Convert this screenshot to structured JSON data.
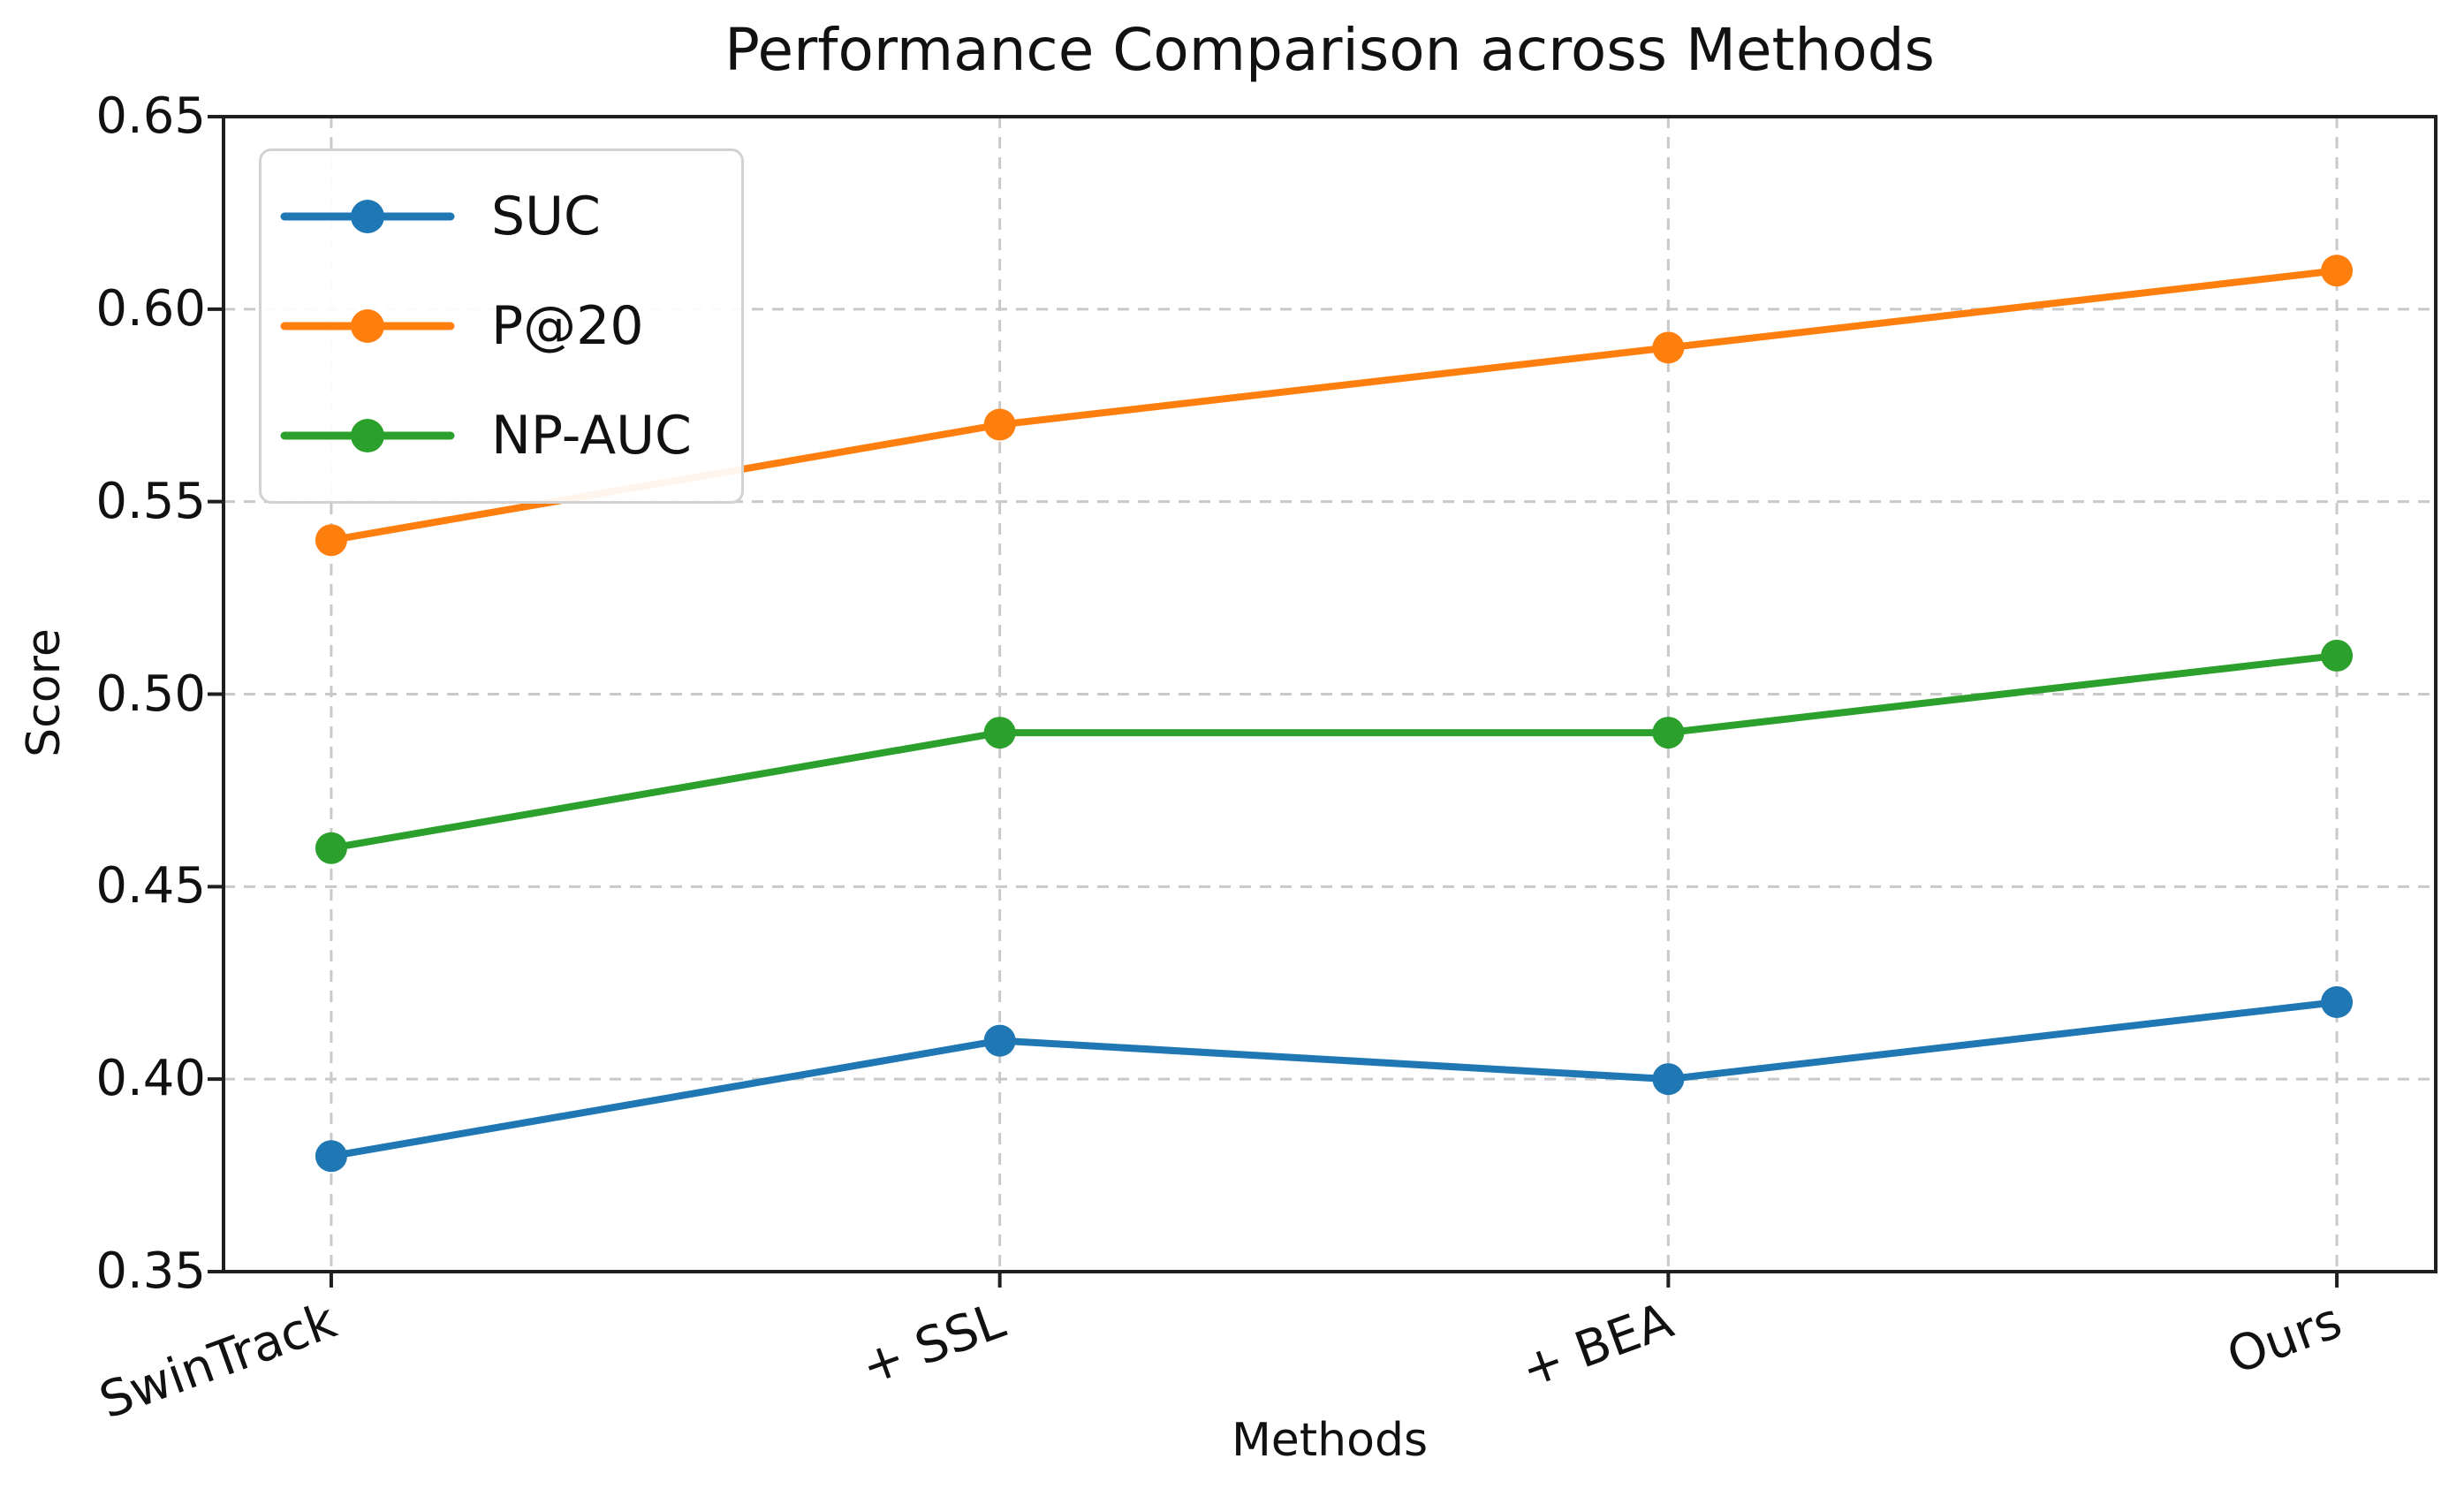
{
  "figure": {
    "title": "Performance Comparison across Methods",
    "xlabel": "Methods",
    "ylabel": "Score"
  },
  "chart_data": {
    "type": "line",
    "title": "Performance Comparison across Methods",
    "xlabel": "Methods",
    "ylabel": "Score",
    "categories": [
      "SwinTrack",
      "+ SSL",
      "+ BEA",
      "Ours"
    ],
    "series": [
      {
        "name": "SUC",
        "color": "#1f77b4",
        "values": [
          0.38,
          0.41,
          0.4,
          0.42
        ]
      },
      {
        "name": "P@20",
        "color": "#ff7f0e",
        "values": [
          0.54,
          0.57,
          0.59,
          0.61
        ]
      },
      {
        "name": "NP-AUC",
        "color": "#2ca02c",
        "values": [
          0.46,
          0.49,
          0.49,
          0.51
        ]
      }
    ],
    "ylim": [
      0.35,
      0.65
    ],
    "yticks": [
      0.35,
      0.4,
      0.45,
      0.5,
      0.55,
      0.6,
      0.65
    ],
    "ytick_labels": [
      "0.35",
      "0.40",
      "0.45",
      "0.50",
      "0.55",
      "0.60",
      "0.65"
    ],
    "grid": true,
    "grid_style": "dashed",
    "grid_color": "#c9c9c9",
    "spine_color": "#1f1f1f",
    "legend_position": "upper left",
    "marker": "circle"
  }
}
